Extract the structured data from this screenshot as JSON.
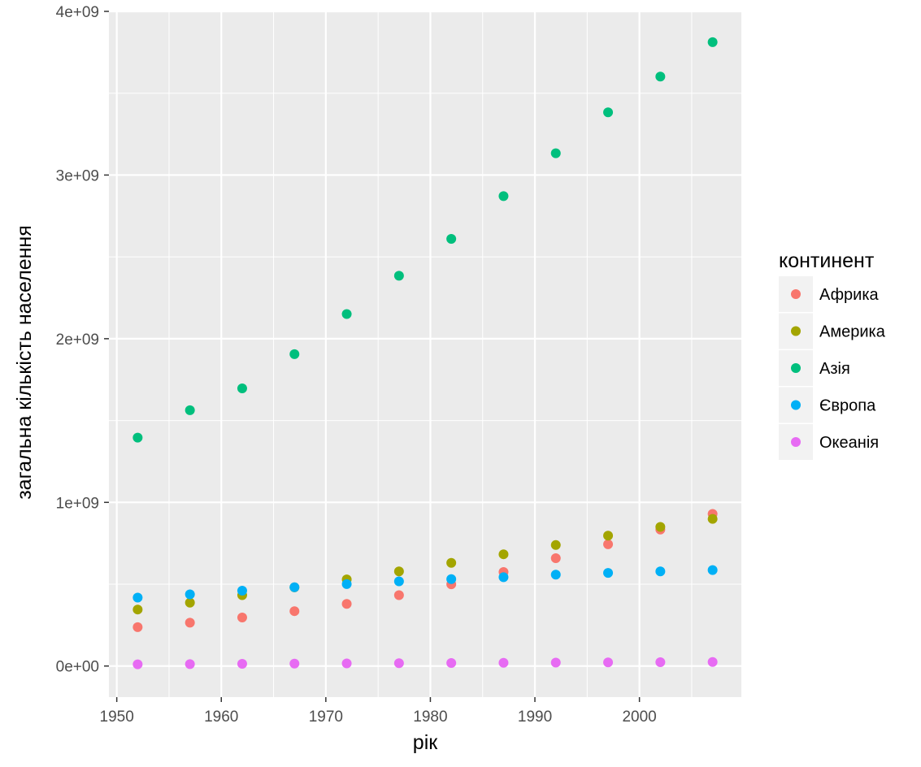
{
  "chart_data": {
    "type": "scatter",
    "title": "",
    "xlabel": "рік",
    "ylabel": "загальна кількість населення",
    "xlim": [
      1949.25,
      2009.75
    ],
    "ylim": [
      -190000000,
      4000000000
    ],
    "x_ticks": [
      1950,
      1960,
      1970,
      1980,
      1990,
      2000
    ],
    "x_tick_labels": [
      "1950",
      "1960",
      "1970",
      "1980",
      "1990",
      "2000"
    ],
    "y_ticks": [
      0,
      1000000000,
      2000000000,
      3000000000,
      4000000000
    ],
    "y_tick_labels": [
      "0e+00",
      "1e+09",
      "2e+09",
      "3e+09",
      "4e+09"
    ],
    "grid": true,
    "legend_title": "континент",
    "legend_position": "right",
    "x": [
      1952,
      1957,
      1962,
      1967,
      1972,
      1977,
      1982,
      1987,
      1992,
      1997,
      2002,
      2007
    ],
    "series": [
      {
        "name": "Африка",
        "color": "#F8766D",
        "values": [
          237600000,
          264800000,
          296500000,
          335300000,
          379900000,
          433100000,
          499300000,
          574800000,
          659100000,
          743800000,
          833700000,
          929500000
        ]
      },
      {
        "name": "Америка",
        "color": "#A3A500",
        "values": [
          345200000,
          386900000,
          433300000,
          480700000,
          529400000,
          578100000,
          630300000,
          682800000,
          739300000,
          796900000,
          849800000,
          898900000
        ]
      },
      {
        "name": "Азія",
        "color": "#00BF7D",
        "values": [
          1395400000,
          1562800000,
          1696400000,
          1905700000,
          2150900000,
          2384500000,
          2610100000,
          2871200000,
          3133300000,
          3383300000,
          3601800000,
          3811900000
        ]
      },
      {
        "name": "Європа",
        "color": "#00B0F6",
        "values": [
          418100000,
          437900000,
          460400000,
          481200000,
          500600000,
          517200000,
          531300000,
          543100000,
          558400000,
          568900000,
          578200000,
          586100000
        ]
      },
      {
        "name": "Океанія",
        "color": "#E76BF3",
        "values": [
          10700000,
          11900000,
          13300000,
          14600000,
          16100000,
          17200000,
          18400000,
          19600000,
          21000000,
          22200000,
          23500000,
          24500000
        ]
      }
    ]
  },
  "colors": {
    "panel_background": "#EBEBEB",
    "grid_major": "#FFFFFF",
    "legend_key_background": "#F2F2F2"
  }
}
